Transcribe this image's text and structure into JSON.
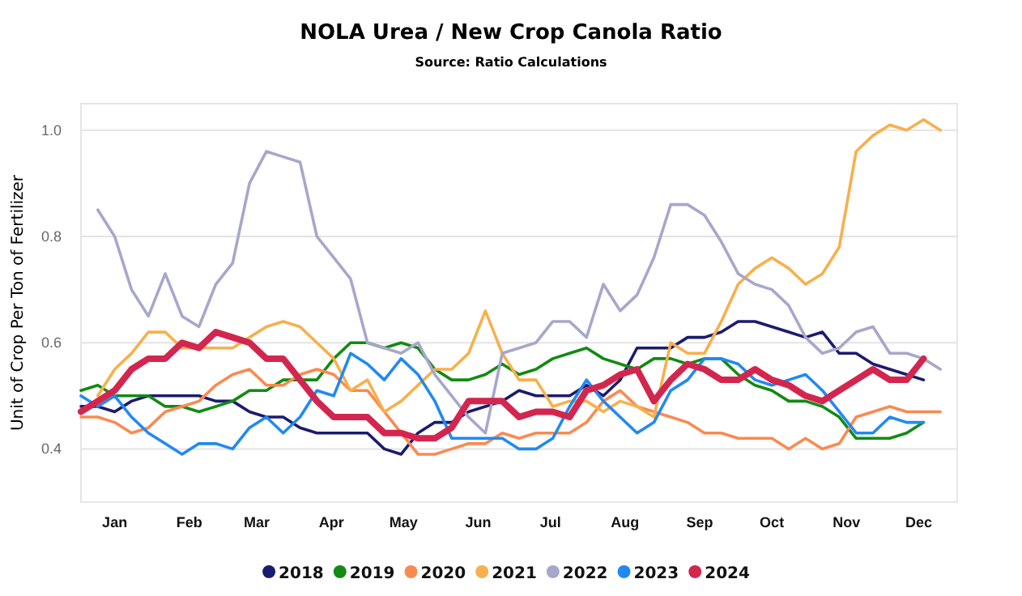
{
  "chart_data": {
    "type": "line",
    "title": "NOLA Urea / New Crop Canola Ratio",
    "subtitle": "Source: Ratio Calculations",
    "ylabel": "Unit of Crop Per Ton of Fertilizer",
    "x": [
      "--01-01",
      "--01-08",
      "--01-15",
      "--01-22",
      "--01-29",
      "--02-05",
      "--02-12",
      "--02-19",
      "--02-26",
      "--03-05",
      "--03-12",
      "--03-19",
      "--03-26",
      "--04-02",
      "--04-09",
      "--04-16",
      "--04-23",
      "--04-30",
      "--05-07",
      "--05-14",
      "--05-21",
      "--05-28",
      "--06-04",
      "--06-11",
      "--06-18",
      "--06-25",
      "--07-02",
      "--07-09",
      "--07-16",
      "--07-23",
      "--07-30",
      "--08-06",
      "--08-13",
      "--08-20",
      "--08-27",
      "--09-03",
      "--09-10",
      "--09-17",
      "--09-24",
      "--10-01",
      "--10-08",
      "--10-15",
      "--10-22",
      "--10-29",
      "--11-05",
      "--11-12",
      "--11-19",
      "--11-26",
      "--12-03",
      "--12-10",
      "--12-17",
      "--12-24"
    ],
    "xlim": [
      "--01-01",
      "--12-31"
    ],
    "xticks": [
      {
        "value": "--01-15",
        "label": "Jan"
      },
      {
        "value": "--02-15",
        "label": "Feb"
      },
      {
        "value": "--03-15",
        "label": "Mar"
      },
      {
        "value": "--04-15",
        "label": "Apr"
      },
      {
        "value": "--05-15",
        "label": "May"
      },
      {
        "value": "--06-15",
        "label": "Jun"
      },
      {
        "value": "--07-15",
        "label": "Jul"
      },
      {
        "value": "--08-15",
        "label": "Aug"
      },
      {
        "value": "--09-15",
        "label": "Sep"
      },
      {
        "value": "--10-15",
        "label": "Oct"
      },
      {
        "value": "--11-15",
        "label": "Nov"
      },
      {
        "value": "--12-15",
        "label": "Dec"
      }
    ],
    "ylim": [
      0.3,
      1.05
    ],
    "yticks": [
      {
        "value": 0.4,
        "label": "0.4"
      },
      {
        "value": 0.6,
        "label": "0.6"
      },
      {
        "value": 0.8,
        "label": "0.8"
      },
      {
        "value": 1.0,
        "label": "1.0"
      }
    ],
    "grid": "y",
    "legend": "bottom",
    "marker": "none",
    "line_style": "solid",
    "series": [
      {
        "name": "2018",
        "color": "#1b1b6f",
        "values": [
          0.48,
          0.48,
          0.47,
          0.49,
          0.5,
          0.5,
          0.5,
          0.5,
          0.49,
          0.49,
          0.47,
          0.46,
          0.46,
          0.44,
          0.43,
          0.43,
          0.43,
          0.43,
          0.4,
          0.39,
          0.43,
          0.45,
          0.45,
          0.47,
          0.48,
          0.49,
          0.51,
          0.5,
          0.5,
          0.5,
          0.52,
          0.5,
          0.53,
          0.59,
          0.59,
          0.59,
          0.61,
          0.61,
          0.62,
          0.64,
          0.64,
          0.63,
          0.62,
          0.61,
          0.62,
          0.58,
          0.58,
          0.56,
          0.55,
          0.54,
          0.53,
          null
        ]
      },
      {
        "name": "2019",
        "color": "#138a13",
        "values": [
          0.51,
          0.52,
          0.5,
          0.5,
          0.5,
          0.48,
          0.48,
          0.47,
          0.48,
          0.49,
          0.51,
          0.51,
          0.53,
          0.53,
          0.53,
          0.57,
          0.6,
          0.6,
          0.59,
          0.6,
          0.59,
          0.55,
          0.53,
          0.53,
          0.54,
          0.56,
          0.54,
          0.55,
          0.57,
          0.58,
          0.59,
          0.57,
          0.56,
          0.55,
          0.57,
          0.57,
          0.56,
          0.57,
          0.57,
          0.54,
          0.52,
          0.51,
          0.49,
          0.49,
          0.48,
          0.46,
          0.42,
          0.42,
          0.42,
          0.43,
          0.45,
          null
        ]
      },
      {
        "name": "2020",
        "color": "#fa8a50",
        "values": [
          0.46,
          0.46,
          0.45,
          0.43,
          0.44,
          0.47,
          0.48,
          0.49,
          0.52,
          0.54,
          0.55,
          0.52,
          0.52,
          0.54,
          0.55,
          0.54,
          0.51,
          0.51,
          0.47,
          0.43,
          0.39,
          0.39,
          0.4,
          0.41,
          0.41,
          0.43,
          0.42,
          0.43,
          0.43,
          0.43,
          0.45,
          0.49,
          0.51,
          0.48,
          0.47,
          0.46,
          0.45,
          0.43,
          0.43,
          0.42,
          0.42,
          0.42,
          0.4,
          0.42,
          0.4,
          0.41,
          0.46,
          0.47,
          0.48,
          0.47,
          0.47,
          0.47
        ]
      },
      {
        "name": "2021",
        "color": "#f7b04c",
        "values": [
          null,
          0.5,
          0.55,
          0.58,
          0.62,
          0.62,
          0.59,
          0.59,
          0.59,
          0.59,
          0.61,
          0.63,
          0.64,
          0.63,
          0.6,
          0.57,
          0.51,
          0.53,
          0.47,
          0.49,
          0.52,
          0.55,
          0.55,
          0.58,
          0.66,
          0.58,
          0.53,
          0.53,
          0.48,
          0.49,
          0.49,
          0.47,
          0.49,
          0.48,
          0.46,
          0.6,
          0.58,
          0.58,
          0.64,
          0.71,
          0.74,
          0.76,
          0.74,
          0.71,
          0.73,
          0.78,
          0.96,
          0.99,
          1.01,
          1.0,
          1.02,
          1.0
        ]
      },
      {
        "name": "2022",
        "color": "#a7a7cc",
        "values": [
          null,
          0.85,
          0.8,
          0.7,
          0.65,
          0.73,
          0.65,
          0.63,
          0.71,
          0.75,
          0.9,
          0.96,
          0.95,
          0.94,
          0.8,
          0.76,
          0.72,
          0.6,
          0.59,
          0.58,
          0.6,
          0.54,
          0.5,
          0.46,
          0.43,
          0.58,
          0.59,
          0.6,
          0.64,
          0.64,
          0.61,
          0.71,
          0.66,
          0.69,
          0.76,
          0.86,
          0.86,
          0.84,
          0.79,
          0.73,
          0.71,
          0.7,
          0.67,
          0.61,
          0.58,
          0.59,
          0.62,
          0.63,
          0.58,
          0.58,
          0.57,
          0.55
        ]
      },
      {
        "name": "2023",
        "color": "#2189f2",
        "values": [
          0.5,
          0.48,
          0.5,
          0.46,
          0.43,
          0.41,
          0.39,
          0.41,
          0.41,
          0.4,
          0.44,
          0.46,
          0.43,
          0.46,
          0.51,
          0.5,
          0.58,
          0.56,
          0.53,
          0.57,
          0.54,
          0.49,
          0.42,
          0.42,
          0.42,
          0.42,
          0.4,
          0.4,
          0.42,
          0.48,
          0.53,
          0.49,
          0.46,
          0.43,
          0.45,
          0.51,
          0.53,
          0.57,
          0.57,
          0.56,
          0.53,
          0.52,
          0.53,
          0.54,
          0.51,
          0.47,
          0.43,
          0.43,
          0.46,
          0.45,
          0.45,
          null
        ]
      },
      {
        "name": "2024",
        "color": "#d3264f",
        "values": [
          0.47,
          0.49,
          0.51,
          0.55,
          0.57,
          0.57,
          0.6,
          0.59,
          0.62,
          0.61,
          0.6,
          0.57,
          0.57,
          0.53,
          0.49,
          0.46,
          0.46,
          0.46,
          0.43,
          0.43,
          0.42,
          0.42,
          0.44,
          0.49,
          0.49,
          0.49,
          0.46,
          0.47,
          0.47,
          0.46,
          0.51,
          0.52,
          0.54,
          0.55,
          0.49,
          0.53,
          0.56,
          0.55,
          0.53,
          0.53,
          0.55,
          0.53,
          0.52,
          0.5,
          0.49,
          0.51,
          0.53,
          0.55,
          0.53,
          0.53,
          0.57,
          null
        ]
      }
    ]
  }
}
